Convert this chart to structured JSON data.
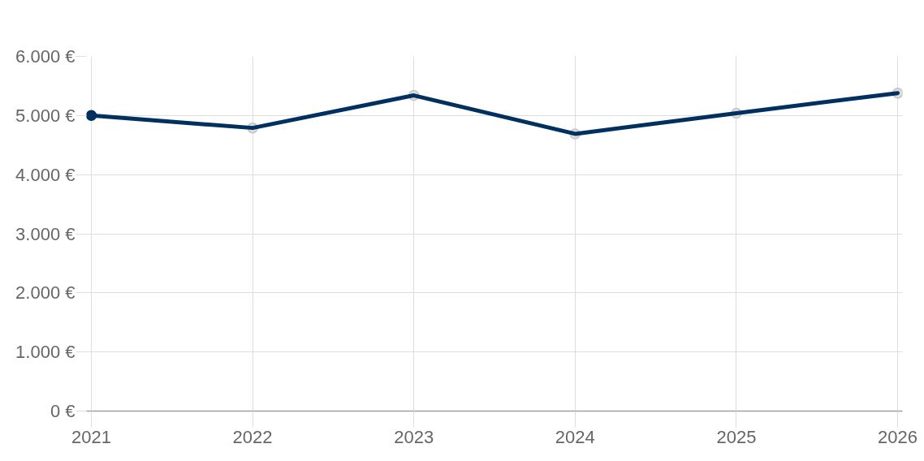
{
  "chart_data": {
    "type": "line",
    "categories": [
      "2021",
      "2022",
      "2023",
      "2024",
      "2025",
      "2026"
    ],
    "series": [
      {
        "color": "#00305f",
        "colors": [
          "#00305f",
          "#dedede",
          "#dedede",
          "#dedede",
          "#dedede",
          "#dedede"
        ],
        "values": [
          5000,
          4790,
          5340,
          4690,
          5040,
          5380
        ]
      }
    ],
    "ylim": [
      0,
      6000
    ],
    "yticks": [
      {
        "value": 0,
        "label": "0 €"
      },
      {
        "value": 1000,
        "label": "1.000 €"
      },
      {
        "value": 2000,
        "label": "2.000 €"
      },
      {
        "value": 3000,
        "label": "3.000 €"
      },
      {
        "value": 4000,
        "label": "4.000 €"
      },
      {
        "value": 5000,
        "label": "5.000 €"
      },
      {
        "value": 6000,
        "label": "6.000 €"
      }
    ],
    "grid": true,
    "marker": "circle",
    "line_style": "solid"
  }
}
